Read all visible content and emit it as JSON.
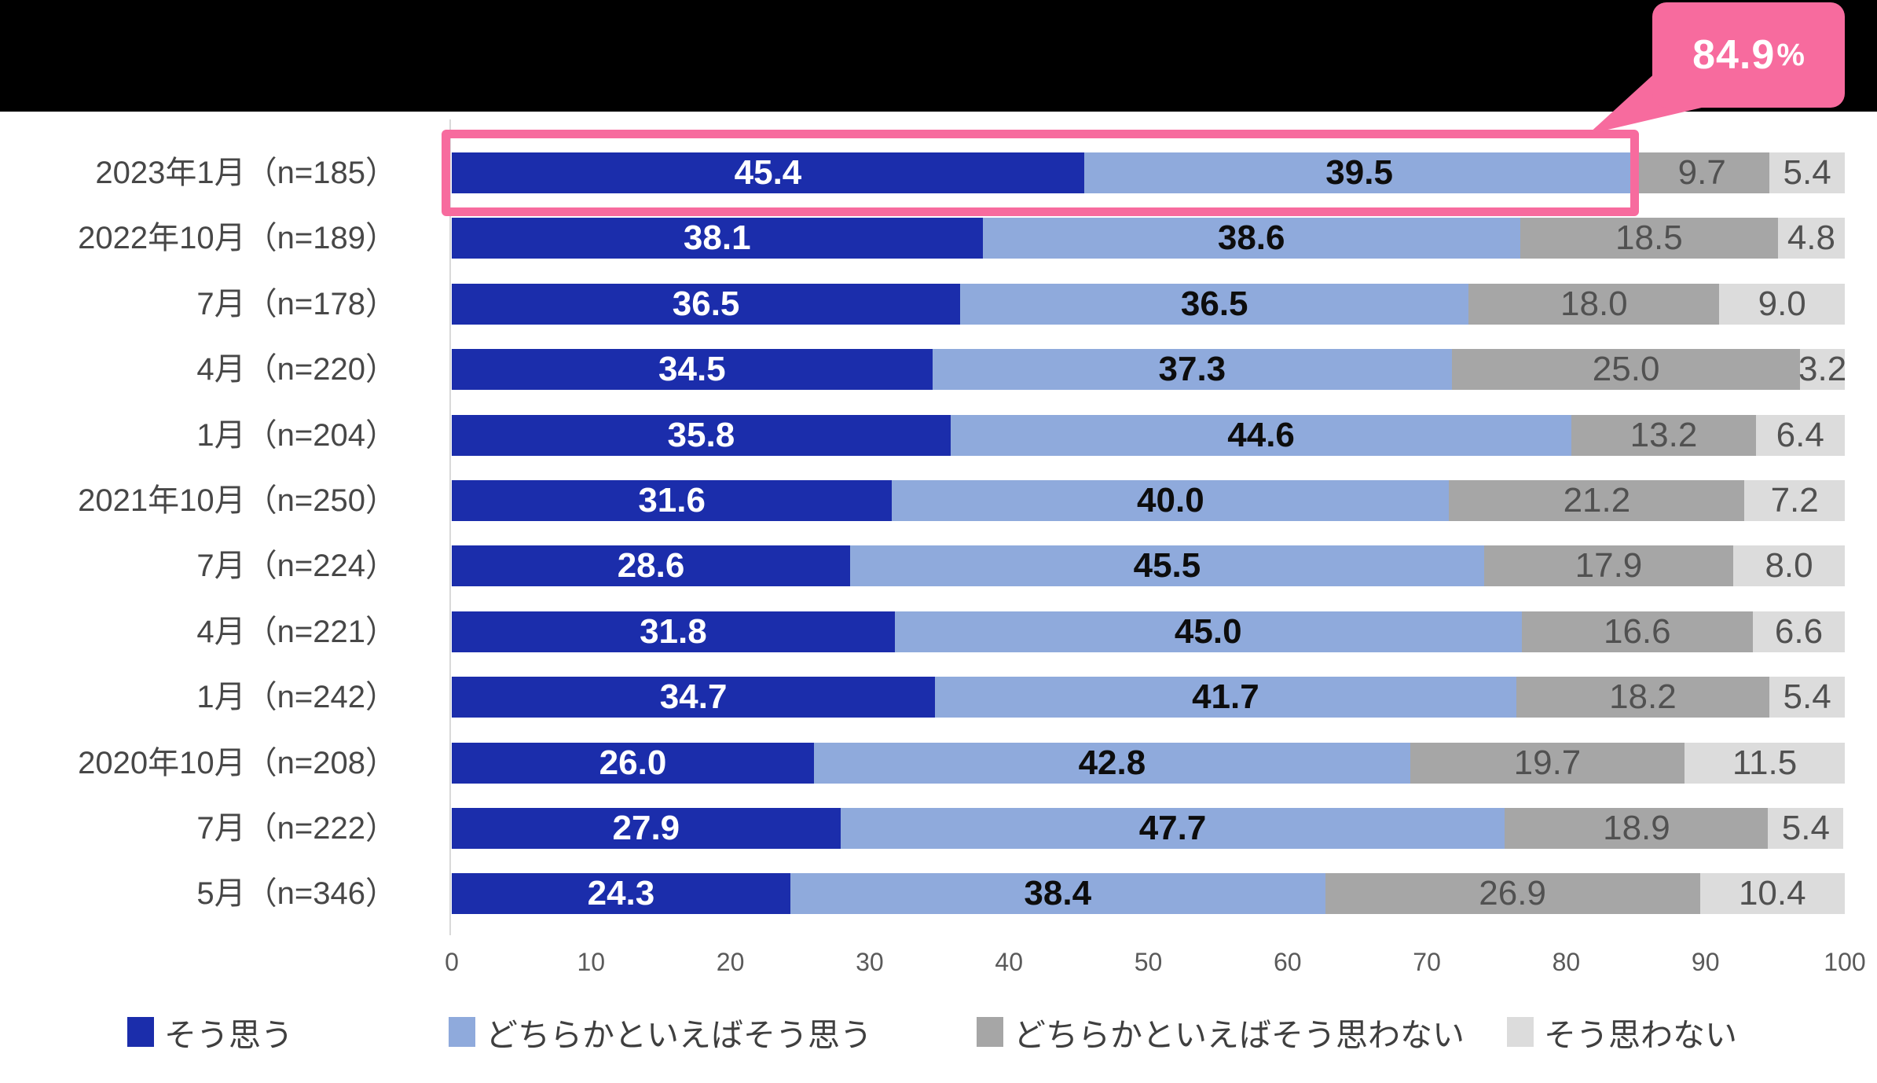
{
  "callout": {
    "value": "84.9",
    "suffix": "%",
    "color": "#F76B9E"
  },
  "chart_data": {
    "type": "bar",
    "stacked": true,
    "orientation": "horizontal",
    "categories": [
      "2023年1月（n=185）",
      "2022年10月（n=189）",
      "7月（n=178）",
      "4月（n=220）",
      "1月（n=204）",
      "2021年10月（n=250）",
      "7月（n=224）",
      "4月（n=221）",
      "1月（n=242）",
      "2020年10月（n=208）",
      "7月（n=222）",
      "5月（n=346）"
    ],
    "series": [
      {
        "name": "そう思う",
        "color": "#1B2DAB",
        "values": [
          45.4,
          38.1,
          36.5,
          34.5,
          35.8,
          31.6,
          28.6,
          31.8,
          34.7,
          26.0,
          27.9,
          24.3
        ]
      },
      {
        "name": "どちらかといえばそう思う",
        "color": "#8FAADC",
        "values": [
          39.5,
          38.6,
          36.5,
          37.3,
          44.6,
          40.0,
          45.5,
          45.0,
          41.7,
          42.8,
          47.7,
          38.4
        ]
      },
      {
        "name": "どちらかといえばそう思わない",
        "color": "#A6A6A6",
        "values": [
          9.7,
          18.5,
          18.0,
          25.0,
          13.2,
          21.2,
          17.9,
          16.6,
          18.2,
          19.7,
          18.9,
          26.9
        ]
      },
      {
        "name": "そう思わない",
        "color": "#DCDCDC",
        "values": [
          5.4,
          4.8,
          9.0,
          3.2,
          6.4,
          7.2,
          8.0,
          6.6,
          5.4,
          11.5,
          5.4,
          10.4
        ]
      }
    ],
    "xlim": [
      0,
      100
    ],
    "x_ticks": [
      0,
      10,
      20,
      30,
      40,
      50,
      60,
      70,
      80,
      90,
      100
    ],
    "grid": false,
    "legend_position": "bottom",
    "highlighted_category": "2023年1月（n=185）",
    "highlight_annotation": "84.9%"
  },
  "legend": {
    "items": [
      {
        "label": "そう思う",
        "color": "#1B2DAB"
      },
      {
        "label": "どちらかといえばそう思う",
        "color": "#8FAADC"
      },
      {
        "label": "どちらかといえばそう思わない",
        "color": "#A6A6A6"
      },
      {
        "label": "そう思わない",
        "color": "#DCDCDC"
      }
    ]
  }
}
